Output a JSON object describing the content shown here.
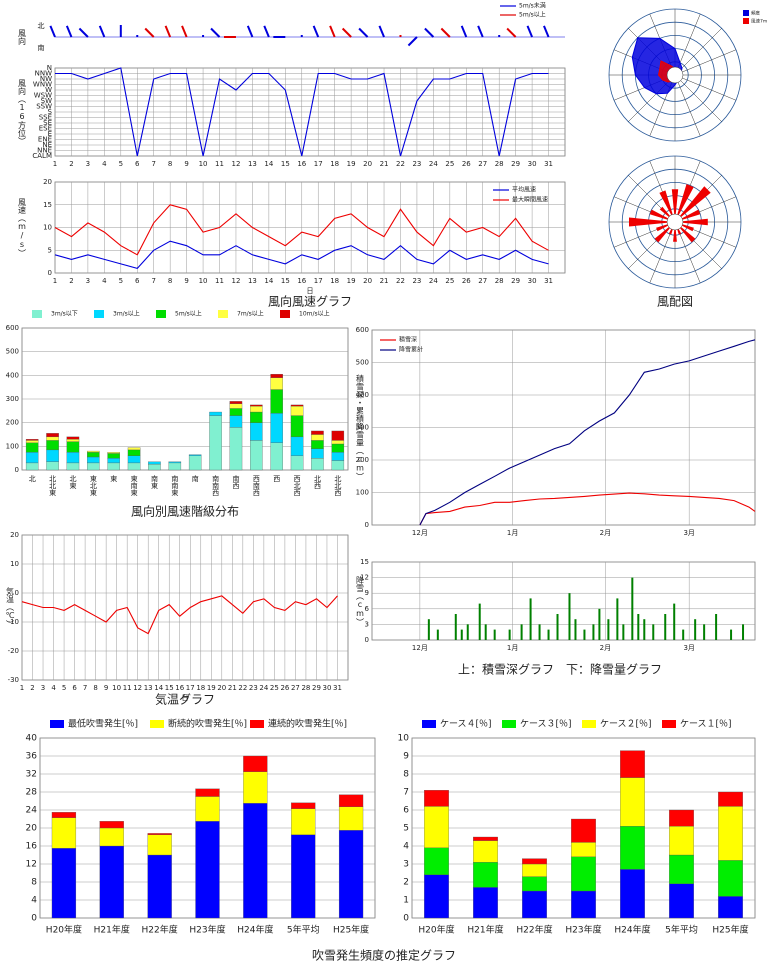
{
  "captions": [
    "風向風速グラフ",
    "風配図",
    "風向別風速階級分布",
    "気温グラフ",
    "上：積雪深グラフ　下：降雪量グラフ",
    "吹雪発生頻度の推定グラフ"
  ],
  "chart_data": [
    {
      "type": "wind_barb",
      "y_top": "北",
      "y_bottom": "南",
      "y_label": "風向",
      "x": [
        1,
        2,
        3,
        4,
        5,
        6,
        7,
        8,
        9,
        10,
        11,
        12,
        13,
        14,
        15,
        16,
        17,
        18,
        19,
        20,
        21,
        22,
        23,
        24,
        25,
        26,
        27,
        28,
        29,
        30,
        31
      ],
      "xlim": [
        1,
        32
      ],
      "series": [
        {
          "name": "5m/s未満",
          "color": "#0000dd",
          "values": [
            15,
            15,
            14,
            15,
            16,
            0,
            null,
            null,
            null,
            0,
            14,
            null,
            15,
            15,
            12,
            0,
            15,
            null,
            null,
            14,
            15,
            null,
            10,
            14,
            null,
            15,
            15,
            0,
            null,
            15,
            15
          ]
        },
        {
          "name": "5m/s以上",
          "color": "#e00000",
          "values": [
            null,
            null,
            null,
            null,
            null,
            null,
            14,
            15,
            15,
            null,
            null,
            12,
            null,
            null,
            null,
            null,
            null,
            15,
            14,
            null,
            null,
            0,
            null,
            null,
            14,
            null,
            null,
            null,
            14,
            null,
            null
          ]
        }
      ]
    },
    {
      "type": "line",
      "y_label": "風向（16方位）",
      "grid": true,
      "x": [
        1,
        2,
        3,
        4,
        5,
        6,
        7,
        8,
        9,
        10,
        11,
        12,
        13,
        14,
        15,
        16,
        17,
        18,
        19,
        20,
        21,
        22,
        23,
        24,
        25,
        26,
        27,
        28,
        29,
        30,
        31
      ],
      "xlim": [
        1,
        32
      ],
      "xticks": [
        1,
        2,
        3,
        4,
        5,
        6,
        7,
        8,
        9,
        10,
        11,
        12,
        13,
        14,
        15,
        16,
        17,
        18,
        19,
        20,
        21,
        22,
        23,
        24,
        25,
        26,
        27,
        28,
        29,
        30,
        31
      ],
      "ylim": [
        0,
        16
      ],
      "yticks": [
        {
          "value": 16,
          "label": "N"
        },
        {
          "value": 15,
          "label": "NNW"
        },
        {
          "value": 14,
          "label": "NW"
        },
        {
          "value": 13,
          "label": "WNW"
        },
        {
          "value": 12,
          "label": "W"
        },
        {
          "value": 11,
          "label": "WSW"
        },
        {
          "value": 10,
          "label": "SW"
        },
        {
          "value": 9,
          "label": "SSW"
        },
        {
          "value": 8,
          "label": "S"
        },
        {
          "value": 7,
          "label": "SSE"
        },
        {
          "value": 6,
          "label": "SE"
        },
        {
          "value": 5,
          "label": "ESE"
        },
        {
          "value": 4,
          "label": "E"
        },
        {
          "value": 3,
          "label": "ENE"
        },
        {
          "value": 2,
          "label": "NE"
        },
        {
          "value": 1,
          "label": "NNE"
        },
        {
          "value": 0,
          "label": "CALM"
        }
      ],
      "series": [
        {
          "color": "#0000dd",
          "values": [
            15,
            15,
            14,
            15,
            16,
            0,
            14,
            15,
            15,
            0,
            14,
            12,
            15,
            15,
            12,
            0,
            15,
            15,
            14,
            14,
            15,
            0,
            10,
            14,
            14,
            15,
            15,
            0,
            14,
            15,
            15
          ]
        }
      ]
    },
    {
      "type": "line",
      "y_label": "風速（m/s）",
      "x_label": "日",
      "grid": true,
      "x": [
        1,
        2,
        3,
        4,
        5,
        6,
        7,
        8,
        9,
        10,
        11,
        12,
        13,
        14,
        15,
        16,
        17,
        18,
        19,
        20,
        21,
        22,
        23,
        24,
        25,
        26,
        27,
        28,
        29,
        30,
        31
      ],
      "xlim": [
        1,
        32
      ],
      "xticks": [
        1,
        2,
        3,
        4,
        5,
        6,
        7,
        8,
        9,
        10,
        11,
        12,
        13,
        14,
        15,
        16,
        17,
        18,
        19,
        20,
        21,
        22,
        23,
        24,
        25,
        26,
        27,
        28,
        29,
        30,
        31
      ],
      "ylim": [
        0,
        20
      ],
      "yticks": [
        0,
        5,
        10,
        15,
        20
      ],
      "series": [
        {
          "name": "平均風速",
          "color": "#0000dd",
          "values": [
            4,
            3,
            4,
            3,
            2,
            1,
            5,
            7,
            6,
            4,
            4,
            6,
            4,
            3,
            2,
            4,
            3,
            5,
            6,
            4,
            3,
            6,
            3,
            2,
            5,
            3,
            4,
            3,
            5,
            3,
            2
          ]
        },
        {
          "name": "最大瞬間風速",
          "color": "#ee0000",
          "values": [
            10,
            8,
            11,
            9,
            6,
            4,
            11,
            15,
            14,
            9,
            10,
            13,
            10,
            8,
            6,
            9,
            8,
            12,
            13,
            10,
            8,
            14,
            9,
            6,
            12,
            9,
            10,
            8,
            12,
            7,
            5
          ]
        }
      ]
    },
    {
      "type": "polar_area",
      "rlim": [
        0,
        20
      ],
      "rticks": [
        4,
        8,
        12,
        16,
        20
      ],
      "series": [
        {
          "name": "頻度",
          "color": "#0000dd",
          "values": [
            8,
            4,
            3,
            2,
            2,
            2,
            2,
            2,
            3,
            6,
            8,
            10,
            12,
            14,
            16,
            12
          ]
        },
        {
          "name": "風速7m/s以上",
          "color": "#ee0000",
          "values": [
            2,
            1,
            1,
            0,
            0,
            0,
            0,
            0,
            1,
            2,
            3,
            4,
            5,
            5,
            6,
            3
          ]
        }
      ]
    },
    {
      "type": "polar_bar",
      "rlim": [
        0,
        20
      ],
      "rticks": [
        4,
        8,
        12,
        16,
        20
      ],
      "series": [
        {
          "color": "#ee0000",
          "values": [
            10,
            12,
            14,
            8,
            10,
            6,
            8,
            4,
            6,
            4,
            8,
            6,
            14,
            8,
            6,
            10
          ]
        }
      ]
    },
    {
      "type": "stacked_bar",
      "grid": true,
      "ylim": [
        0,
        600
      ],
      "yticks": [
        0,
        100,
        200,
        300,
        400,
        500,
        600
      ],
      "categories": [
        "北",
        "北北東",
        "北東",
        "東北東",
        "東",
        "東南東",
        "南東",
        "南南東",
        "南",
        "南南西",
        "南西",
        "西南西",
        "西",
        "西北西",
        "北西",
        "北北西"
      ],
      "series": [
        {
          "name": "3m/s以下",
          "color": "#80f0d0",
          "values": [
            30,
            35,
            30,
            30,
            30,
            30,
            25,
            30,
            60,
            230,
            180,
            125,
            115,
            60,
            50,
            40
          ]
        },
        {
          "name": "3m/s以上",
          "color": "#00d8ff",
          "values": [
            45,
            50,
            45,
            25,
            20,
            30,
            10,
            5,
            5,
            15,
            50,
            75,
            125,
            80,
            40,
            35
          ]
        },
        {
          "name": "5m/s以上",
          "color": "#00dd00",
          "values": [
            40,
            40,
            45,
            20,
            20,
            25,
            0,
            0,
            0,
            0,
            30,
            45,
            100,
            90,
            35,
            35
          ]
        },
        {
          "name": "7m/s以上",
          "color": "#ffff40",
          "values": [
            10,
            15,
            10,
            5,
            5,
            10,
            0,
            0,
            0,
            0,
            20,
            25,
            50,
            40,
            25,
            15
          ]
        },
        {
          "name": "10m/s以上",
          "color": "#dd0000",
          "values": [
            5,
            15,
            10,
            0,
            0,
            0,
            0,
            0,
            0,
            0,
            10,
            5,
            15,
            5,
            15,
            40
          ]
        }
      ]
    },
    {
      "type": "line",
      "y_label": "気温（℃）",
      "x_label": "日",
      "grid": true,
      "x": [
        1,
        2,
        3,
        4,
        5,
        6,
        7,
        8,
        9,
        10,
        11,
        12,
        13,
        14,
        15,
        16,
        17,
        18,
        19,
        20,
        21,
        22,
        23,
        24,
        25,
        26,
        27,
        28,
        29,
        30,
        31
      ],
      "xlim": [
        1,
        32
      ],
      "xticks": [
        1,
        2,
        3,
        4,
        5,
        6,
        7,
        8,
        9,
        10,
        11,
        12,
        13,
        14,
        15,
        16,
        17,
        18,
        19,
        20,
        21,
        22,
        23,
        24,
        25,
        26,
        27,
        28,
        29,
        30,
        31
      ],
      "ylim": [
        -30,
        20
      ],
      "yticks": [
        20,
        10,
        0,
        -10,
        -20,
        -30
      ],
      "series": [
        {
          "color": "#ee0000",
          "values": [
            -3,
            -4,
            -5,
            -5,
            -6,
            -4,
            -6,
            -8,
            -10,
            -6,
            -5,
            -12,
            -14,
            -6,
            -4,
            -8,
            -5,
            -3,
            -2,
            -1,
            -4,
            -7,
            -3,
            -2,
            -5,
            -6,
            -3,
            -4,
            -2,
            -5,
            -1
          ]
        }
      ]
    },
    {
      "type": "line",
      "y_label": "積雪深・累積降雪量（cm）",
      "grid": true,
      "x": [
        0,
        2,
        5,
        10,
        15,
        20,
        25,
        30,
        35,
        40,
        45,
        50,
        55,
        60,
        65,
        70,
        75,
        80,
        85,
        90,
        95,
        100,
        105,
        110,
        112
      ],
      "xlim": [
        -16,
        112
      ],
      "xticks": [
        {
          "value": 0,
          "label": "12月"
        },
        {
          "value": 31,
          "label": "1月"
        },
        {
          "value": 62,
          "label": "2月"
        },
        {
          "value": 90,
          "label": "3月"
        }
      ],
      "ylim": [
        0,
        600
      ],
      "yticks": [
        0,
        100,
        200,
        300,
        400,
        500,
        600
      ],
      "series": [
        {
          "name": "積雪深",
          "color": "#ee0000",
          "values": [
            0,
            35,
            38,
            42,
            55,
            60,
            70,
            70,
            75,
            80,
            82,
            85,
            88,
            92,
            95,
            98,
            96,
            92,
            90,
            88,
            85,
            82,
            75,
            55,
            42
          ]
        },
        {
          "name": "降雪累計",
          "color": "#000080",
          "values": [
            0,
            35,
            45,
            70,
            100,
            125,
            150,
            175,
            195,
            215,
            235,
            250,
            290,
            320,
            345,
            400,
            470,
            480,
            495,
            505,
            520,
            535,
            550,
            565,
            570
          ]
        }
      ]
    },
    {
      "type": "bar",
      "y_label": "降雪（cm）",
      "grid": true,
      "color": "#008000",
      "x": [
        3,
        6,
        12,
        14,
        16,
        20,
        22,
        25,
        30,
        34,
        37,
        40,
        43,
        46,
        50,
        52,
        55,
        58,
        60,
        63,
        66,
        68,
        71,
        73,
        75,
        78,
        82,
        85,
        88,
        92,
        95,
        99,
        104,
        108
      ],
      "xlim": [
        -16,
        112
      ],
      "xticks": [
        {
          "value": 0,
          "label": "12月"
        },
        {
          "value": 31,
          "label": "1月"
        },
        {
          "value": 62,
          "label": "2月"
        },
        {
          "value": 90,
          "label": "3月"
        }
      ],
      "ylim": [
        0,
        15
      ],
      "yticks": [
        0,
        3,
        6,
        9,
        12,
        15
      ],
      "values": [
        4,
        2,
        5,
        2,
        3,
        7,
        3,
        2,
        2,
        3,
        8,
        3,
        2,
        5,
        9,
        4,
        2,
        3,
        6,
        4,
        8,
        3,
        12,
        5,
        4,
        3,
        5,
        7,
        2,
        4,
        3,
        5,
        2,
        3
      ]
    },
    {
      "type": "stacked_bar",
      "grid": true,
      "ylim": [
        0,
        40
      ],
      "yticks": [
        0,
        4,
        8,
        12,
        16,
        20,
        24,
        28,
        32,
        36,
        40
      ],
      "categories": [
        "H20年度",
        "H21年度",
        "H22年度",
        "H23年度",
        "H24年度",
        "5年平均",
        "H25年度"
      ],
      "series": [
        {
          "name": "最低吹雪発生[％]",
          "color": "#0000ff",
          "values": [
            15.5,
            16,
            14,
            21.5,
            25.5,
            18.5,
            19.5
          ]
        },
        {
          "name": "断続的吹雪発生[％]",
          "color": "#ffff00",
          "values": [
            6.8,
            4,
            4.5,
            5.5,
            7,
            5.8,
            5.2
          ]
        },
        {
          "name": "連続的吹雪発生[％]",
          "color": "#ff0000",
          "values": [
            1.2,
            1.5,
            0.3,
            1.7,
            3.5,
            1.3,
            2.7
          ]
        }
      ]
    },
    {
      "type": "stacked_bar",
      "grid": true,
      "ylim": [
        0,
        10
      ],
      "yticks": [
        0,
        1,
        2,
        3,
        4,
        5,
        6,
        7,
        8,
        9,
        10
      ],
      "categories": [
        "H20年度",
        "H21年度",
        "H22年度",
        "H23年度",
        "H24年度",
        "5年平均",
        "H25年度"
      ],
      "series": [
        {
          "name": "ケース４[％]",
          "color": "#0000ff",
          "values": [
            2.4,
            1.7,
            1.5,
            1.5,
            2.7,
            1.9,
            1.2
          ]
        },
        {
          "name": "ケース３[％]",
          "color": "#00ee00",
          "values": [
            1.5,
            1.4,
            0.8,
            1.9,
            2.4,
            1.6,
            2.0
          ]
        },
        {
          "name": "ケース２[％]",
          "color": "#ffff00",
          "values": [
            2.3,
            1.2,
            0.7,
            0.8,
            2.7,
            1.6,
            3.0
          ]
        },
        {
          "name": "ケース１[％]",
          "color": "#ff0000",
          "values": [
            0.9,
            0.2,
            0.3,
            1.3,
            1.5,
            0.9,
            0.8
          ]
        }
      ]
    }
  ]
}
